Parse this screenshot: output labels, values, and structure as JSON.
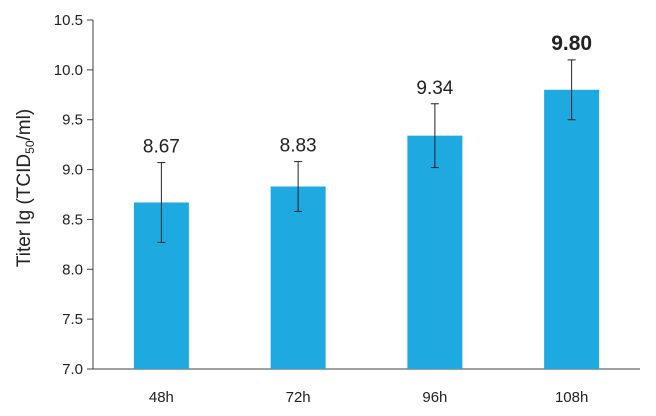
{
  "chart_data": {
    "type": "bar",
    "categories": [
      "48h",
      "72h",
      "96h",
      "108h"
    ],
    "values": [
      8.67,
      8.83,
      9.34,
      9.8
    ],
    "error_bars": [
      0.4,
      0.25,
      0.32,
      0.3
    ],
    "data_labels": [
      "8.67",
      "8.83",
      "9.34",
      "9.80"
    ],
    "emphasized_label_index": 3,
    "ylabel": "Titer lg (TCID",
    "ylabel_subscript": "50",
    "ylabel_suffix": "/ml)",
    "ylim": [
      7.0,
      10.5
    ],
    "y_ticks": [
      "7.0",
      "7.5",
      "8.0",
      "8.5",
      "9.0",
      "9.5",
      "10.0",
      "10.5"
    ],
    "grid": false,
    "bar_color": "#1fa9e1",
    "axis_color": "#404040"
  }
}
